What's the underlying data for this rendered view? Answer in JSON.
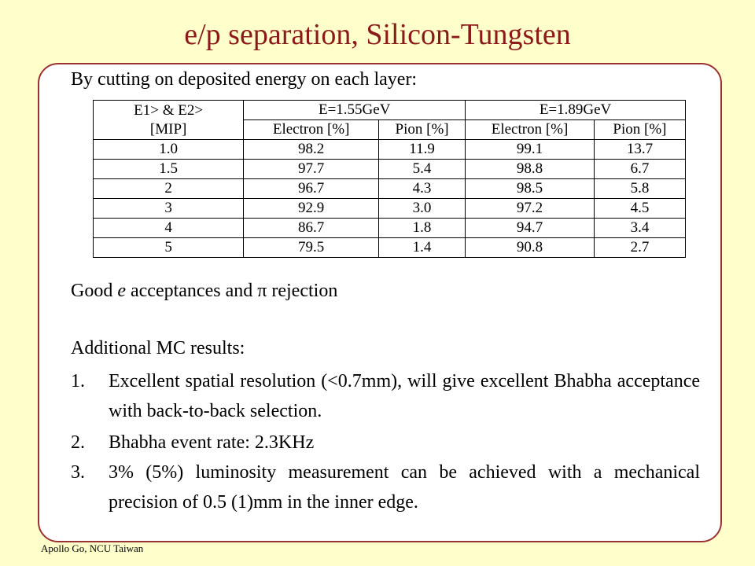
{
  "title": "e/p separation, Silicon-Tungsten",
  "intro": "By cutting on deposited energy on each layer:",
  "table": {
    "corner": [
      "E1> & E2>",
      "[MIP]"
    ],
    "groups": [
      "E=1.55GeV",
      "E=1.89GeV"
    ],
    "subheaders": [
      "Electron [%]",
      "Pion [%]",
      "Electron [%]",
      "Pion [%]"
    ],
    "rows": [
      [
        "1.0",
        "98.2",
        "11.9",
        "99.1",
        "13.7"
      ],
      [
        "1.5",
        "97.7",
        "5.4",
        "98.8",
        "6.7"
      ],
      [
        "2",
        "96.7",
        "4.3",
        "98.5",
        "5.8"
      ],
      [
        "3",
        "92.9",
        "3.0",
        "97.2",
        "4.5"
      ],
      [
        "4",
        "86.7",
        "1.8",
        "94.7",
        "3.4"
      ],
      [
        "5",
        "79.5",
        "1.4",
        "90.8",
        "2.7"
      ]
    ]
  },
  "summary": [
    "Good ",
    "e",
    " acceptances and ",
    "π",
    " rejection"
  ],
  "results_heading": "Additional MC results:",
  "results": [
    {
      "marker": "1.",
      "text": "Excellent spatial resolution (<0.7mm), will give excellent Bhabha acceptance with back-to-back selection."
    },
    {
      "marker": "2.",
      "text": "Bhabha event rate: 2.3KHz"
    },
    {
      "marker": "3.",
      "text": "3% (5%) luminosity measurement can be achieved with a mechanical precision of 0.5 (1)mm in the inner edge."
    }
  ],
  "footer": "Apollo Go, NCU Taiwan"
}
